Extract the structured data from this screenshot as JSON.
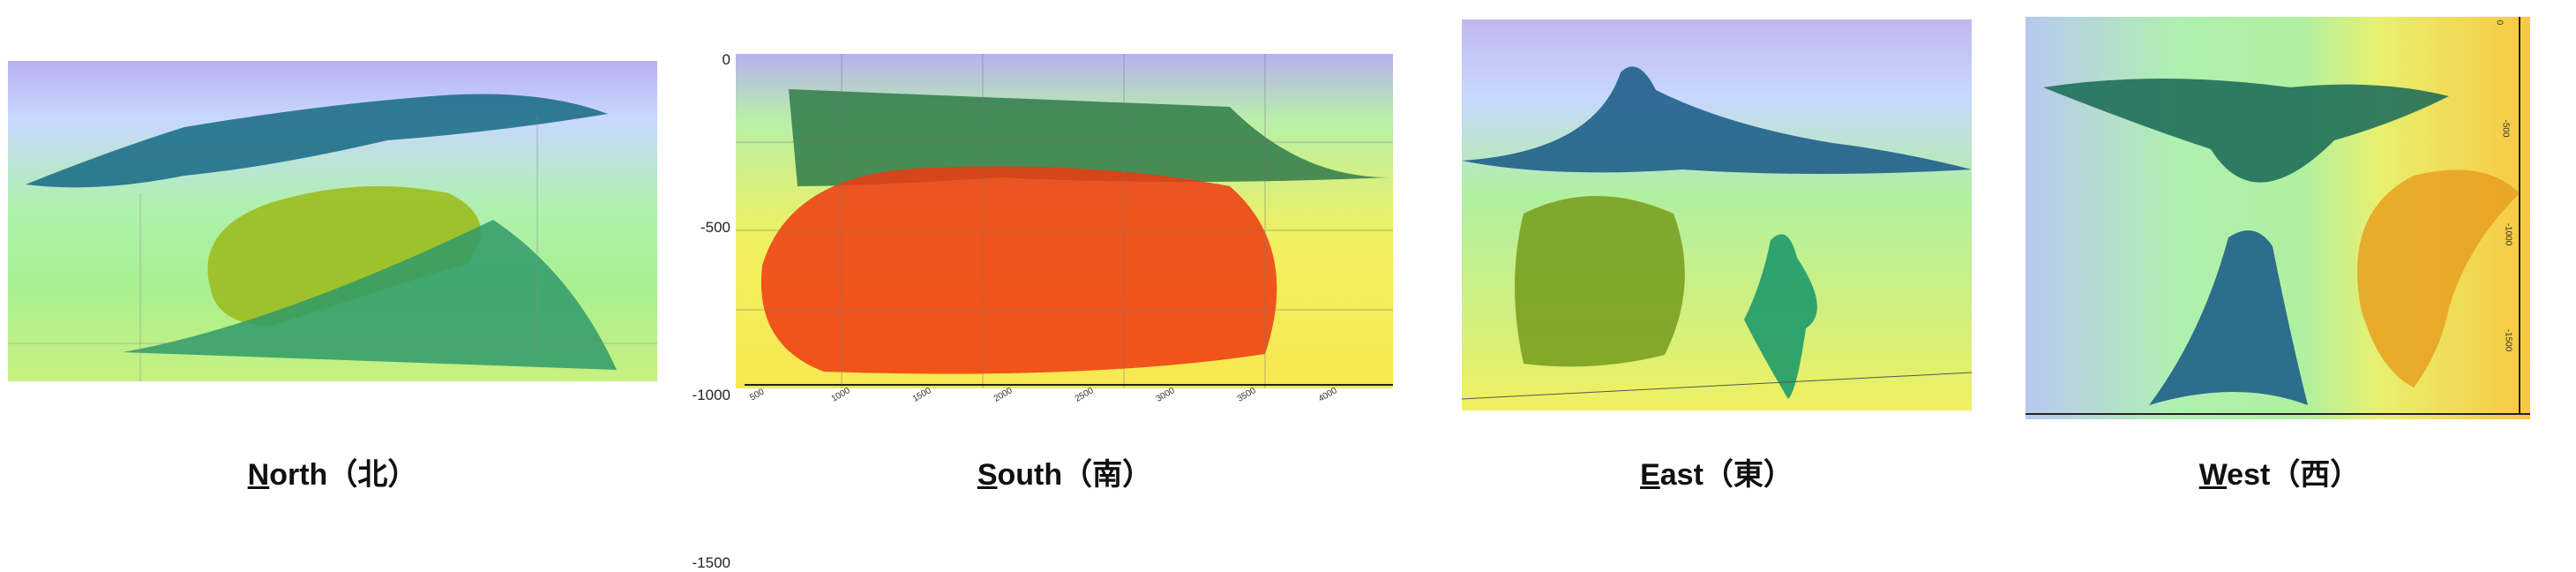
{
  "panels": [
    {
      "caption": "North（北）"
    },
    {
      "caption": "South（南）",
      "y_axis_labels": [
        "0",
        "-500",
        "-1000",
        "-1500"
      ],
      "x_axis_labels": [
        "500",
        "1000",
        "1500",
        "2000",
        "2500",
        "3000",
        "3500",
        "4000"
      ]
    },
    {
      "caption": "East（東）"
    },
    {
      "caption": "West（西）",
      "side_axis_labels": [
        "0",
        "-500",
        "-1000",
        "-1500"
      ]
    }
  ]
}
